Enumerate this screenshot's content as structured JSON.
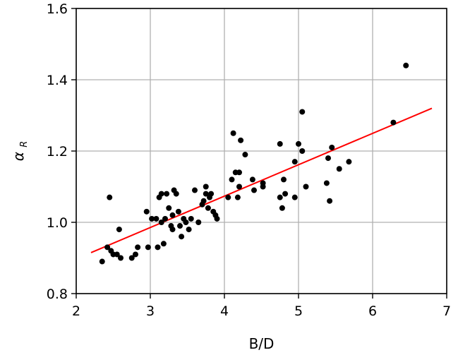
{
  "chart_data": {
    "type": "scatter",
    "xlabel": "B/D",
    "ylabel": "α",
    "ylabel_sub": "R",
    "xlim": [
      2,
      7
    ],
    "ylim": [
      0.8,
      1.6
    ],
    "x_ticks": [
      2,
      3,
      4,
      5,
      6,
      7
    ],
    "y_ticks": [
      0.8,
      1.0,
      1.2,
      1.4,
      1.6
    ],
    "x_tick_labels": [
      "2",
      "3",
      "4",
      "5",
      "6",
      "7"
    ],
    "y_tick_labels": [
      "0.8",
      "1.0",
      "1.2",
      "1.4",
      "1.6"
    ],
    "grid": true,
    "colors": {
      "points": "#000000",
      "fit_line": "#ff0000",
      "grid": "#b0b0b0",
      "frame": "#000000"
    },
    "points": [
      [
        2.35,
        0.89
      ],
      [
        2.42,
        0.93
      ],
      [
        2.45,
        1.07
      ],
      [
        2.47,
        0.92
      ],
      [
        2.5,
        0.91
      ],
      [
        2.55,
        0.91
      ],
      [
        2.58,
        0.98
      ],
      [
        2.6,
        0.9
      ],
      [
        2.75,
        0.9
      ],
      [
        2.8,
        0.91
      ],
      [
        2.83,
        0.93
      ],
      [
        2.95,
        1.03
      ],
      [
        2.97,
        0.93
      ],
      [
        3.02,
        1.01
      ],
      [
        3.08,
        1.01
      ],
      [
        3.1,
        0.93
      ],
      [
        3.12,
        1.07
      ],
      [
        3.15,
        1.08
      ],
      [
        3.15,
        1.0
      ],
      [
        3.18,
        0.94
      ],
      [
        3.2,
        1.01
      ],
      [
        3.22,
        1.08
      ],
      [
        3.25,
        1.04
      ],
      [
        3.28,
        0.99
      ],
      [
        3.3,
        1.02
      ],
      [
        3.3,
        0.98
      ],
      [
        3.32,
        1.09
      ],
      [
        3.35,
        1.08
      ],
      [
        3.38,
        1.03
      ],
      [
        3.4,
        0.99
      ],
      [
        3.42,
        0.96
      ],
      [
        3.45,
        1.01
      ],
      [
        3.48,
        1.0
      ],
      [
        3.52,
        0.98
      ],
      [
        3.55,
        1.01
      ],
      [
        3.6,
        1.09
      ],
      [
        3.65,
        1.0
      ],
      [
        3.7,
        1.05
      ],
      [
        3.72,
        1.06
      ],
      [
        3.75,
        1.1
      ],
      [
        3.75,
        1.08
      ],
      [
        3.78,
        1.04
      ],
      [
        3.8,
        1.07
      ],
      [
        3.82,
        1.08
      ],
      [
        3.85,
        1.03
      ],
      [
        3.88,
        1.02
      ],
      [
        3.9,
        1.01
      ],
      [
        4.05,
        1.07
      ],
      [
        4.1,
        1.12
      ],
      [
        4.12,
        1.25
      ],
      [
        4.15,
        1.14
      ],
      [
        4.18,
        1.07
      ],
      [
        4.2,
        1.14
      ],
      [
        4.2,
        1.1
      ],
      [
        4.22,
        1.23
      ],
      [
        4.28,
        1.19
      ],
      [
        4.38,
        1.12
      ],
      [
        4.4,
        1.09
      ],
      [
        4.52,
        1.1
      ],
      [
        4.52,
        1.11
      ],
      [
        4.75,
        1.22
      ],
      [
        4.75,
        1.07
      ],
      [
        4.78,
        1.04
      ],
      [
        4.8,
        1.12
      ],
      [
        4.82,
        1.08
      ],
      [
        4.95,
        1.17
      ],
      [
        4.95,
        1.07
      ],
      [
        5.0,
        1.22
      ],
      [
        5.05,
        1.31
      ],
      [
        5.05,
        1.2
      ],
      [
        5.1,
        1.1
      ],
      [
        5.38,
        1.11
      ],
      [
        5.4,
        1.18
      ],
      [
        5.42,
        1.06
      ],
      [
        5.45,
        1.21
      ],
      [
        5.55,
        1.15
      ],
      [
        5.68,
        1.17
      ],
      [
        6.28,
        1.28
      ],
      [
        6.45,
        1.44
      ]
    ],
    "fit_line": {
      "x": [
        2.2,
        6.8
      ],
      "y": [
        0.915,
        1.32
      ]
    }
  }
}
